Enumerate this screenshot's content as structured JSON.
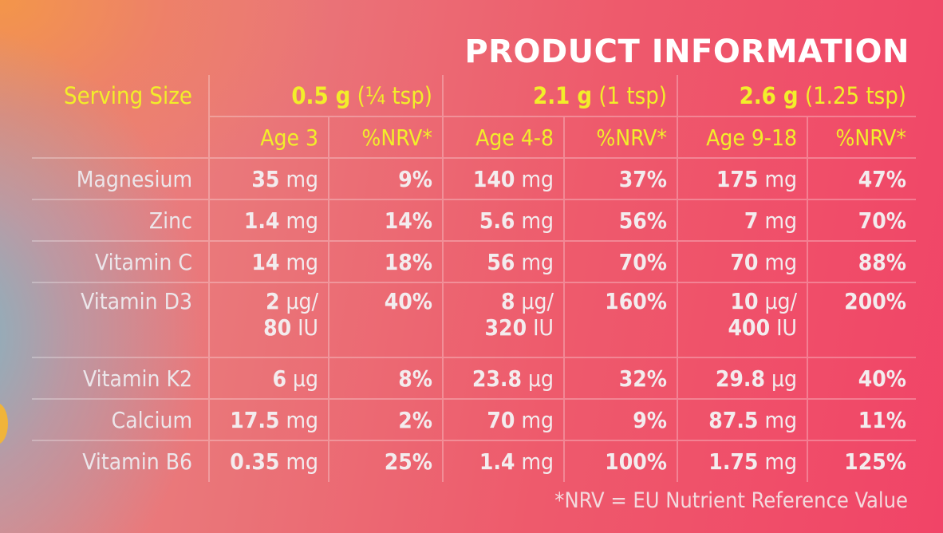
{
  "title": "PRODUCT INFORMATION",
  "serving": {
    "label": "Serving Size",
    "groups": [
      {
        "amount": "0.5 g",
        "measure": "(¼ tsp)"
      },
      {
        "amount": "2.1 g",
        "measure": "(1 tsp)"
      },
      {
        "amount": "2.6 g",
        "measure": "(1.25 tsp)"
      }
    ]
  },
  "headers": [
    "Age 3",
    "%NRV*",
    "Age 4-8",
    "%NRV*",
    "Age 9-18",
    "%NRV*"
  ],
  "rows": [
    {
      "name": "Magnesium",
      "cells": [
        {
          "num": "35",
          "unit": " mg"
        },
        {
          "num": "9%"
        },
        {
          "num": "140",
          "unit": " mg"
        },
        {
          "num": "37%"
        },
        {
          "num": "175",
          "unit": " mg"
        },
        {
          "num": "47%"
        }
      ]
    },
    {
      "name": "Zinc",
      "cells": [
        {
          "num": "1.4",
          "unit": " mg"
        },
        {
          "num": "14%"
        },
        {
          "num": "5.6",
          "unit": " mg"
        },
        {
          "num": "56%"
        },
        {
          "num": "7",
          "unit": " mg"
        },
        {
          "num": "70%"
        }
      ]
    },
    {
      "name": "Vitamin C",
      "cells": [
        {
          "num": "14",
          "unit": " mg"
        },
        {
          "num": "18%"
        },
        {
          "num": "56",
          "unit": " mg"
        },
        {
          "num": "70%"
        },
        {
          "num": "70",
          "unit": " mg"
        },
        {
          "num": "88%"
        }
      ]
    },
    {
      "name": "Vitamin D3",
      "cells": [
        {
          "num": "2",
          "unit": " μg/",
          "num2": "80",
          "unit2": " IU"
        },
        {
          "num": "40%"
        },
        {
          "num": "8",
          "unit": " μg/",
          "num2": "320",
          "unit2": " IU"
        },
        {
          "num": "160%"
        },
        {
          "num": "10",
          "unit": " μg/",
          "num2": "400",
          "unit2": " IU"
        },
        {
          "num": "200%"
        }
      ]
    },
    {
      "name": "Vitamin K2",
      "cells": [
        {
          "num": "6",
          "unit": " μg"
        },
        {
          "num": "8%"
        },
        {
          "num": "23.8",
          "unit": " μg"
        },
        {
          "num": "32%"
        },
        {
          "num": "29.8",
          "unit": " μg"
        },
        {
          "num": "40%"
        }
      ]
    },
    {
      "name": "Calcium",
      "cells": [
        {
          "num": "17.5",
          "unit": " mg"
        },
        {
          "num": "2%"
        },
        {
          "num": "70",
          "unit": " mg"
        },
        {
          "num": "9%"
        },
        {
          "num": "87.5",
          "unit": " mg"
        },
        {
          "num": "11%"
        }
      ]
    },
    {
      "name": "Vitamin B6",
      "cells": [
        {
          "num": "0.35",
          "unit": " mg"
        },
        {
          "num": "25%"
        },
        {
          "num": "1.4",
          "unit": " mg"
        },
        {
          "num": "100%"
        },
        {
          "num": "1.75",
          "unit": " mg"
        },
        {
          "num": "125%"
        }
      ]
    }
  ],
  "footnote": "*NRV = EU Nutrient Reference Value",
  "colors": {
    "accent_yellow": "#f2ee2a",
    "text_light": "#f3ecee",
    "brand_pink": "#f14467"
  }
}
